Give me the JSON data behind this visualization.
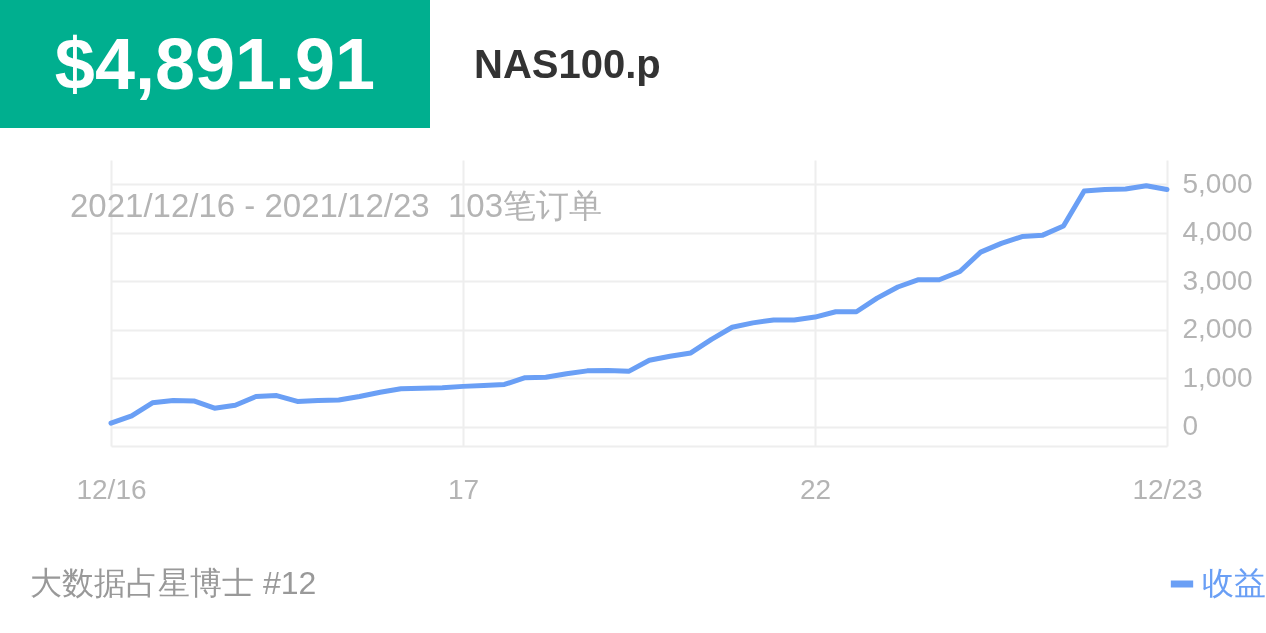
{
  "chart_data": {
    "type": "line",
    "title": "NAS100.p",
    "subtitle": "2021/12/16 - 2021/12/23  103笔订单",
    "annotations": [
      "$4,891.91",
      "大数据占星博士 #12"
    ],
    "categories": [
      "12/16",
      null,
      null,
      null,
      null,
      null,
      null,
      null,
      null,
      null,
      null,
      null,
      null,
      null,
      null,
      null,
      null,
      "17",
      null,
      null,
      null,
      null,
      null,
      null,
      null,
      null,
      null,
      null,
      null,
      null,
      null,
      null,
      null,
      null,
      "22",
      null,
      null,
      null,
      null,
      null,
      null,
      null,
      null,
      null,
      null,
      null,
      null,
      null,
      null,
      null,
      null,
      "12/23"
    ],
    "series": [
      {
        "name": "收益",
        "color": "#6a9ff5",
        "values": [
          70,
          220,
          490,
          540,
          530,
          380,
          440,
          620,
          640,
          520,
          540,
          550,
          620,
          710,
          780,
          790,
          800,
          830,
          850,
          870,
          1010,
          1020,
          1090,
          1150,
          1160,
          1140,
          1370,
          1450,
          1520,
          1800,
          2050,
          2140,
          2200,
          2200,
          2260,
          2370,
          2370,
          2650,
          2880,
          3030,
          3030,
          3200,
          3600,
          3780,
          3920,
          3950,
          4140,
          4860,
          4890,
          4900,
          4970,
          4890
        ]
      }
    ],
    "ylim": [
      -400,
      5500
    ],
    "yticks": [
      0,
      {
        "value": 1000,
        "label": "1,000"
      },
      {
        "value": 2000,
        "label": "2,000"
      },
      {
        "value": 3000,
        "label": "3,000"
      },
      {
        "value": 4000,
        "label": "4,000"
      },
      {
        "value": 5000,
        "label": "5,000"
      }
    ],
    "grid": true,
    "legend": "bottom right",
    "line_style": "solid"
  }
}
